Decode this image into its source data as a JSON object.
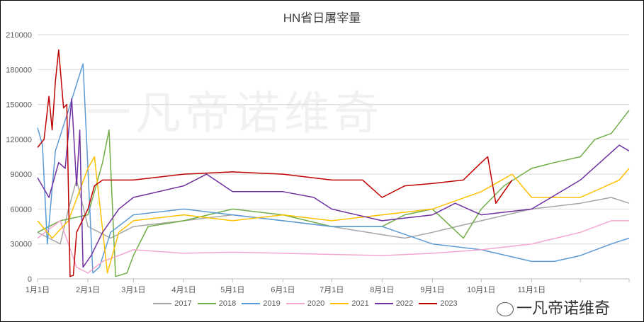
{
  "watermark": "一凡帝诺维奇",
  "logo_text": "一凡帝诺维奇",
  "chart_data": {
    "type": "line",
    "title": "HN省日屠宰量",
    "xlabel": "",
    "ylabel": "",
    "ylim": [
      0,
      210000
    ],
    "yticks": [
      0,
      30000,
      60000,
      90000,
      120000,
      150000,
      180000,
      210000
    ],
    "xticks": [
      "1月1日",
      "2月1日",
      "3月1日",
      "4月1日",
      "5月1日",
      "6月1日",
      "7月1日",
      "8月1日",
      "9月1日",
      "10月1日",
      "11月1日"
    ],
    "grid": true,
    "legend_position": "bottom",
    "series": [
      {
        "name": "2017",
        "color": "#A5A5A5",
        "points": [
          [
            "01-01",
            40000
          ],
          [
            "01-08",
            35000
          ],
          [
            "01-15",
            30000
          ],
          [
            "01-20",
            60000
          ],
          [
            "01-25",
            85000
          ],
          [
            "02-01",
            45000
          ],
          [
            "02-08",
            40000
          ],
          [
            "02-15",
            35000
          ],
          [
            "03-01",
            45000
          ],
          [
            "04-01",
            50000
          ],
          [
            "05-01",
            55000
          ],
          [
            "06-01",
            50000
          ],
          [
            "07-01",
            45000
          ],
          [
            "08-01",
            38000
          ],
          [
            "08-15",
            35000
          ],
          [
            "09-01",
            40000
          ],
          [
            "10-01",
            50000
          ],
          [
            "11-01",
            60000
          ],
          [
            "12-01",
            65000
          ],
          [
            "12-20",
            70000
          ],
          [
            "12-31",
            65000
          ]
        ]
      },
      {
        "name": "2018",
        "color": "#70AD47",
        "points": [
          [
            "01-01",
            40000
          ],
          [
            "01-15",
            50000
          ],
          [
            "02-01",
            55000
          ],
          [
            "02-10",
            100000
          ],
          [
            "02-14",
            128000
          ],
          [
            "02-18",
            2000
          ],
          [
            "02-25",
            5000
          ],
          [
            "03-01",
            20000
          ],
          [
            "03-10",
            45000
          ],
          [
            "04-01",
            50000
          ],
          [
            "05-01",
            60000
          ],
          [
            "06-01",
            55000
          ],
          [
            "07-01",
            45000
          ],
          [
            "08-01",
            45000
          ],
          [
            "08-15",
            55000
          ],
          [
            "09-01",
            60000
          ],
          [
            "09-20",
            35000
          ],
          [
            "10-01",
            60000
          ],
          [
            "10-15",
            80000
          ],
          [
            "11-01",
            95000
          ],
          [
            "11-15",
            100000
          ],
          [
            "12-01",
            105000
          ],
          [
            "12-10",
            120000
          ],
          [
            "12-20",
            125000
          ],
          [
            "12-31",
            145000
          ]
        ]
      },
      {
        "name": "2019",
        "color": "#5B9BD5",
        "points": [
          [
            "01-01",
            130000
          ],
          [
            "01-04",
            115000
          ],
          [
            "01-07",
            30000
          ],
          [
            "01-12",
            110000
          ],
          [
            "01-20",
            145000
          ],
          [
            "01-29",
            185000
          ],
          [
            "02-04",
            5000
          ],
          [
            "02-08",
            10000
          ],
          [
            "02-15",
            40000
          ],
          [
            "03-01",
            55000
          ],
          [
            "04-01",
            60000
          ],
          [
            "05-01",
            55000
          ],
          [
            "06-01",
            50000
          ],
          [
            "07-01",
            45000
          ],
          [
            "08-01",
            45000
          ],
          [
            "09-01",
            30000
          ],
          [
            "10-01",
            25000
          ],
          [
            "11-01",
            15000
          ],
          [
            "11-15",
            15000
          ],
          [
            "12-01",
            20000
          ],
          [
            "12-20",
            30000
          ],
          [
            "12-31",
            35000
          ]
        ]
      },
      {
        "name": "2020",
        "color": "#F4A6D0",
        "points": [
          [
            "01-01",
            35000
          ],
          [
            "01-15",
            50000
          ],
          [
            "01-25",
            10000
          ],
          [
            "02-01",
            5000
          ],
          [
            "02-10",
            15000
          ],
          [
            "02-20",
            20000
          ],
          [
            "03-01",
            25000
          ],
          [
            "04-01",
            22000
          ],
          [
            "05-01",
            23000
          ],
          [
            "06-01",
            22000
          ],
          [
            "07-01",
            21000
          ],
          [
            "08-01",
            20000
          ],
          [
            "09-01",
            22000
          ],
          [
            "10-01",
            25000
          ],
          [
            "11-01",
            30000
          ],
          [
            "12-01",
            40000
          ],
          [
            "12-20",
            50000
          ],
          [
            "12-31",
            50000
          ]
        ]
      },
      {
        "name": "2021",
        "color": "#FFC000",
        "points": [
          [
            "01-01",
            50000
          ],
          [
            "01-10",
            35000
          ],
          [
            "01-20",
            50000
          ],
          [
            "02-01",
            95000
          ],
          [
            "02-05",
            105000
          ],
          [
            "02-13",
            5000
          ],
          [
            "02-20",
            40000
          ],
          [
            "03-01",
            50000
          ],
          [
            "04-01",
            55000
          ],
          [
            "05-01",
            50000
          ],
          [
            "06-01",
            55000
          ],
          [
            "07-01",
            50000
          ],
          [
            "08-01",
            55000
          ],
          [
            "09-01",
            60000
          ],
          [
            "10-01",
            75000
          ],
          [
            "10-20",
            90000
          ],
          [
            "11-01",
            70000
          ],
          [
            "12-01",
            70000
          ],
          [
            "12-25",
            85000
          ],
          [
            "12-31",
            95000
          ]
        ]
      },
      {
        "name": "2022",
        "color": "#7030A0",
        "points": [
          [
            "01-01",
            87000
          ],
          [
            "01-08",
            70000
          ],
          [
            "01-14",
            100000
          ],
          [
            "01-18",
            95000
          ],
          [
            "01-22",
            155000
          ],
          [
            "01-25",
            80000
          ],
          [
            "01-27",
            128000
          ],
          [
            "01-29",
            10000
          ],
          [
            "02-03",
            20000
          ],
          [
            "02-10",
            40000
          ],
          [
            "02-20",
            60000
          ],
          [
            "03-01",
            70000
          ],
          [
            "04-01",
            80000
          ],
          [
            "04-15",
            90000
          ],
          [
            "05-01",
            75000
          ],
          [
            "06-01",
            75000
          ],
          [
            "06-20",
            70000
          ],
          [
            "07-01",
            60000
          ],
          [
            "08-01",
            50000
          ],
          [
            "09-01",
            55000
          ],
          [
            "09-15",
            65000
          ],
          [
            "10-01",
            55000
          ],
          [
            "11-01",
            60000
          ],
          [
            "12-01",
            85000
          ],
          [
            "12-25",
            115000
          ],
          [
            "12-31",
            110000
          ]
        ]
      },
      {
        "name": "2023",
        "color": "#C00000",
        "points": [
          [
            "01-01",
            113000
          ],
          [
            "01-05",
            120000
          ],
          [
            "01-08",
            157000
          ],
          [
            "01-10",
            128000
          ],
          [
            "01-12",
            170000
          ],
          [
            "01-14",
            197000
          ],
          [
            "01-17",
            147000
          ],
          [
            "01-19",
            150000
          ],
          [
            "01-21",
            2000
          ],
          [
            "01-23",
            3000
          ],
          [
            "01-25",
            40000
          ],
          [
            "02-01",
            60000
          ],
          [
            "02-05",
            80000
          ],
          [
            "02-10",
            85000
          ],
          [
            "03-01",
            85000
          ],
          [
            "04-01",
            90000
          ],
          [
            "05-01",
            92000
          ],
          [
            "06-01",
            90000
          ],
          [
            "07-01",
            85000
          ],
          [
            "07-20",
            85000
          ],
          [
            "08-01",
            70000
          ],
          [
            "08-15",
            80000
          ],
          [
            "09-01",
            82000
          ],
          [
            "09-20",
            85000
          ],
          [
            "10-01",
            100000
          ],
          [
            "10-05",
            105000
          ],
          [
            "10-10",
            65000
          ],
          [
            "10-20",
            85000
          ]
        ]
      }
    ]
  }
}
